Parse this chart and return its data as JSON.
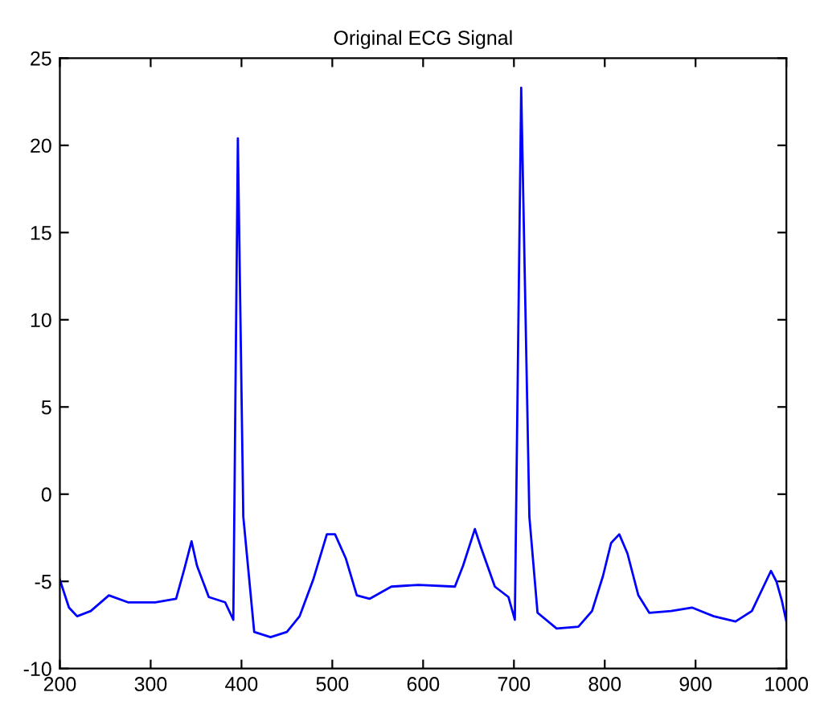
{
  "chart_data": {
    "type": "line",
    "title": "Original ECG Signal",
    "x": [
      200,
      210,
      219,
      234,
      254,
      275,
      305,
      328,
      337,
      345,
      351,
      364,
      382,
      391,
      396,
      402,
      414,
      432,
      450,
      464,
      479,
      494,
      503,
      515,
      527,
      541,
      565,
      595,
      635,
      644,
      657,
      664,
      679,
      694,
      701,
      708,
      717,
      726,
      747,
      771,
      786,
      798,
      807,
      816,
      825,
      837,
      849,
      873,
      896,
      920,
      944,
      962,
      983,
      989,
      995,
      1000
    ],
    "series": [
      {
        "color": "#0000ff",
        "values": [
          -4.9,
          -6.5,
          -7.0,
          -6.7,
          -5.8,
          -6.2,
          -6.2,
          -6.0,
          -4.3,
          -2.7,
          -4.1,
          -5.9,
          -6.2,
          -7.2,
          20.4,
          -1.3,
          -7.9,
          -8.2,
          -7.9,
          -7.0,
          -4.9,
          -2.3,
          -2.3,
          -3.7,
          -5.8,
          -6.0,
          -5.3,
          -5.2,
          -5.3,
          -4.1,
          -2.0,
          -3.1,
          -5.3,
          -5.9,
          -7.2,
          23.3,
          -1.3,
          -6.8,
          -7.7,
          -7.6,
          -6.7,
          -4.7,
          -2.8,
          -2.3,
          -3.4,
          -5.8,
          -6.8,
          -6.7,
          -6.5,
          -7.0,
          -7.3,
          -6.7,
          -4.4,
          -5.0,
          -6.1,
          -7.3
        ]
      }
    ],
    "xlim": [
      200,
      1000
    ],
    "ylim": [
      -10,
      25
    ],
    "xticks": [
      200,
      300,
      400,
      500,
      600,
      700,
      800,
      900,
      1000
    ],
    "yticks": [
      -10,
      -5,
      0,
      5,
      10,
      15,
      20,
      25
    ],
    "grid": false,
    "legend": false,
    "marker": "none",
    "line_style": "solid"
  }
}
